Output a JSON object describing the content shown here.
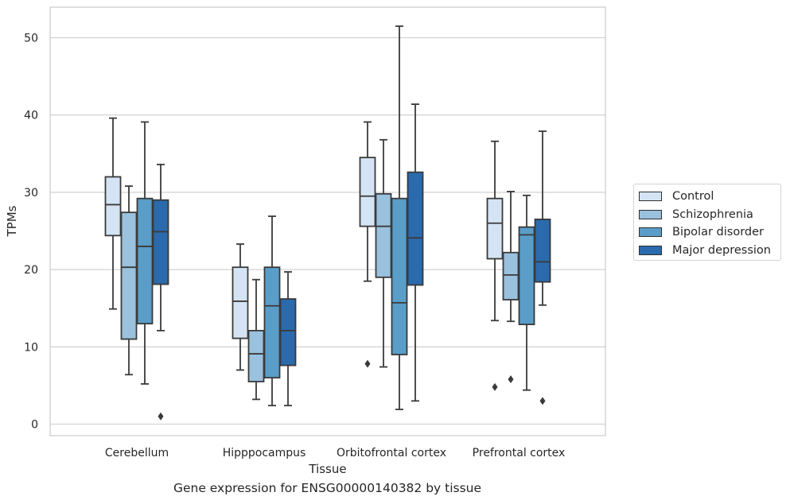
{
  "caption": "Gene expression for ENSG00000140382 by tissue",
  "chart_data": {
    "type": "box",
    "xlabel": "Tissue",
    "ylabel": "TPMs",
    "ylim": [
      -1.5,
      55
    ],
    "yticks": [
      0,
      10,
      20,
      30,
      40,
      50
    ],
    "grid": true,
    "legend_position": "right",
    "categories": [
      "Cerebellum",
      "Hipppocampus",
      "Orbitofrontal cortex",
      "Prefrontal cortex"
    ],
    "series": [
      {
        "name": "Control",
        "color": "#d4e4f4",
        "boxes": [
          {
            "whisker_low": 14.9,
            "q1": 24.4,
            "median": 28.4,
            "q3": 32.0,
            "whisker_high": 39.6,
            "outliers": []
          },
          {
            "whisker_low": 7.0,
            "q1": 11.1,
            "median": 15.9,
            "q3": 20.3,
            "whisker_high": 23.3,
            "outliers": []
          },
          {
            "whisker_low": 18.5,
            "q1": 25.6,
            "median": 29.5,
            "q3": 34.5,
            "whisker_high": 39.1,
            "outliers": [
              7.8
            ]
          },
          {
            "whisker_low": 13.4,
            "q1": 21.4,
            "median": 26.0,
            "q3": 29.2,
            "whisker_high": 36.6,
            "outliers": [
              4.8
            ]
          }
        ]
      },
      {
        "name": "Schizophrenia",
        "color": "#9ac1dd",
        "boxes": [
          {
            "whisker_low": 6.4,
            "q1": 11.0,
            "median": 20.3,
            "q3": 27.4,
            "whisker_high": 30.8,
            "outliers": []
          },
          {
            "whisker_low": 3.2,
            "q1": 5.5,
            "median": 9.1,
            "q3": 12.1,
            "whisker_high": 18.7,
            "outliers": []
          },
          {
            "whisker_low": 7.4,
            "q1": 19.0,
            "median": 25.6,
            "q3": 29.8,
            "whisker_high": 36.8,
            "outliers": []
          },
          {
            "whisker_low": 13.3,
            "q1": 16.1,
            "median": 19.3,
            "q3": 22.2,
            "whisker_high": 30.1,
            "outliers": [
              5.8
            ]
          }
        ]
      },
      {
        "name": "Bipolar disorder",
        "color": "#5a9dc8",
        "boxes": [
          {
            "whisker_low": 5.2,
            "q1": 13.0,
            "median": 23.0,
            "q3": 29.2,
            "whisker_high": 39.1,
            "outliers": []
          },
          {
            "whisker_low": 2.4,
            "q1": 6.0,
            "median": 15.3,
            "q3": 20.3,
            "whisker_high": 26.9,
            "outliers": []
          },
          {
            "whisker_low": 1.9,
            "q1": 9.0,
            "median": 15.7,
            "q3": 29.2,
            "whisker_high": 51.5,
            "outliers": []
          },
          {
            "whisker_low": 4.4,
            "q1": 12.9,
            "median": 24.5,
            "q3": 25.5,
            "whisker_high": 29.6,
            "outliers": []
          }
        ]
      },
      {
        "name": "Major depression",
        "color": "#2a6aad",
        "boxes": [
          {
            "whisker_low": 12.1,
            "q1": 18.1,
            "median": 24.9,
            "q3": 29.0,
            "whisker_high": 33.6,
            "outliers": [
              1.0
            ]
          },
          {
            "whisker_low": 2.4,
            "q1": 7.6,
            "median": 12.1,
            "q3": 16.2,
            "whisker_high": 19.7,
            "outliers": []
          },
          {
            "whisker_low": 3.0,
            "q1": 18.0,
            "median": 24.1,
            "q3": 32.6,
            "whisker_high": 41.4,
            "outliers": []
          },
          {
            "whisker_low": 15.4,
            "q1": 18.4,
            "median": 21.0,
            "q3": 26.5,
            "whisker_high": 37.9,
            "outliers": [
              3.0
            ]
          }
        ]
      }
    ]
  }
}
